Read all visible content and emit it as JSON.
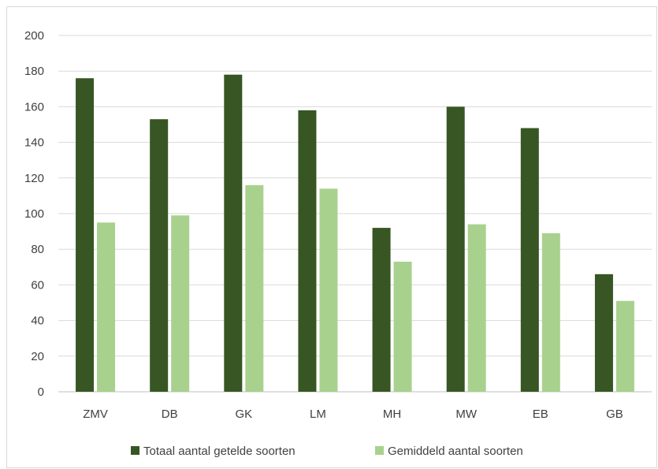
{
  "chart_data": {
    "type": "bar",
    "title": "",
    "xlabel": "",
    "ylabel": "",
    "categories": [
      "ZMV",
      "DB",
      "GK",
      "LM",
      "MH",
      "MW",
      "EB",
      "GB"
    ],
    "series": [
      {
        "name": "Totaal aantal getelde soorten",
        "color": "#375623",
        "values": [
          176,
          153,
          178,
          158,
          92,
          160,
          148,
          66
        ]
      },
      {
        "name": "Gemiddeld aantal soorten",
        "color": "#a9d18e",
        "values": [
          95,
          99,
          116,
          114,
          73,
          94,
          89,
          51
        ]
      }
    ],
    "ylim": [
      0,
      200
    ],
    "yticks": [
      0,
      20,
      40,
      60,
      80,
      100,
      120,
      140,
      160,
      180,
      200
    ],
    "grid": true,
    "legend_position": "bottom"
  }
}
